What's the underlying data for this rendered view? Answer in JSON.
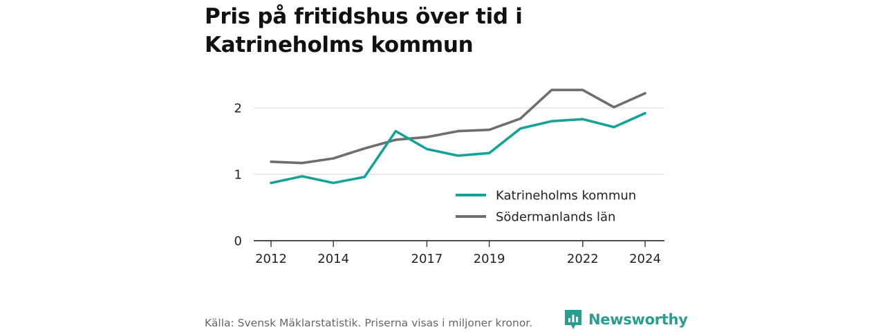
{
  "title": "Pris på fritidshus över tid i Katrineholms kommun",
  "footer": "Källa: Svensk Mäklarstatistik. Priserna visas i miljoner kronor.",
  "brand": {
    "name": "Newsworthy",
    "icon": "newsworthy-logo-icon",
    "color": "#2a9d8f"
  },
  "chart_data": {
    "type": "line",
    "title": "Pris på fritidshus över tid i Katrineholms kommun",
    "xlabel": "",
    "ylabel": "",
    "x": [
      2012,
      2013,
      2014,
      2015,
      2016,
      2017,
      2018,
      2019,
      2020,
      2021,
      2022,
      2023,
      2024
    ],
    "x_tick_labels": [
      "2012",
      "2014",
      "2017",
      "2019",
      "2022",
      "2024"
    ],
    "x_ticks": [
      2012,
      2014,
      2017,
      2019,
      2022,
      2024
    ],
    "y_ticks": [
      0,
      1,
      2
    ],
    "y_tick_labels": [
      "0",
      "1",
      "2"
    ],
    "ylim": [
      0,
      2.5
    ],
    "xlim": [
      2011.5,
      2024.6
    ],
    "grid": true,
    "legend_position": "bottom-right",
    "series": [
      {
        "name": "Katrineholms kommun",
        "color": "#15a398",
        "values": [
          0.87,
          0.97,
          0.87,
          0.96,
          1.65,
          1.38,
          1.28,
          1.32,
          1.69,
          1.8,
          1.83,
          1.71,
          1.92
        ]
      },
      {
        "name": "Södermanlands län",
        "color": "#6e6e70",
        "values": [
          1.19,
          1.17,
          1.24,
          1.39,
          1.52,
          1.56,
          1.65,
          1.67,
          1.84,
          2.27,
          2.27,
          2.01,
          2.22
        ]
      }
    ]
  }
}
